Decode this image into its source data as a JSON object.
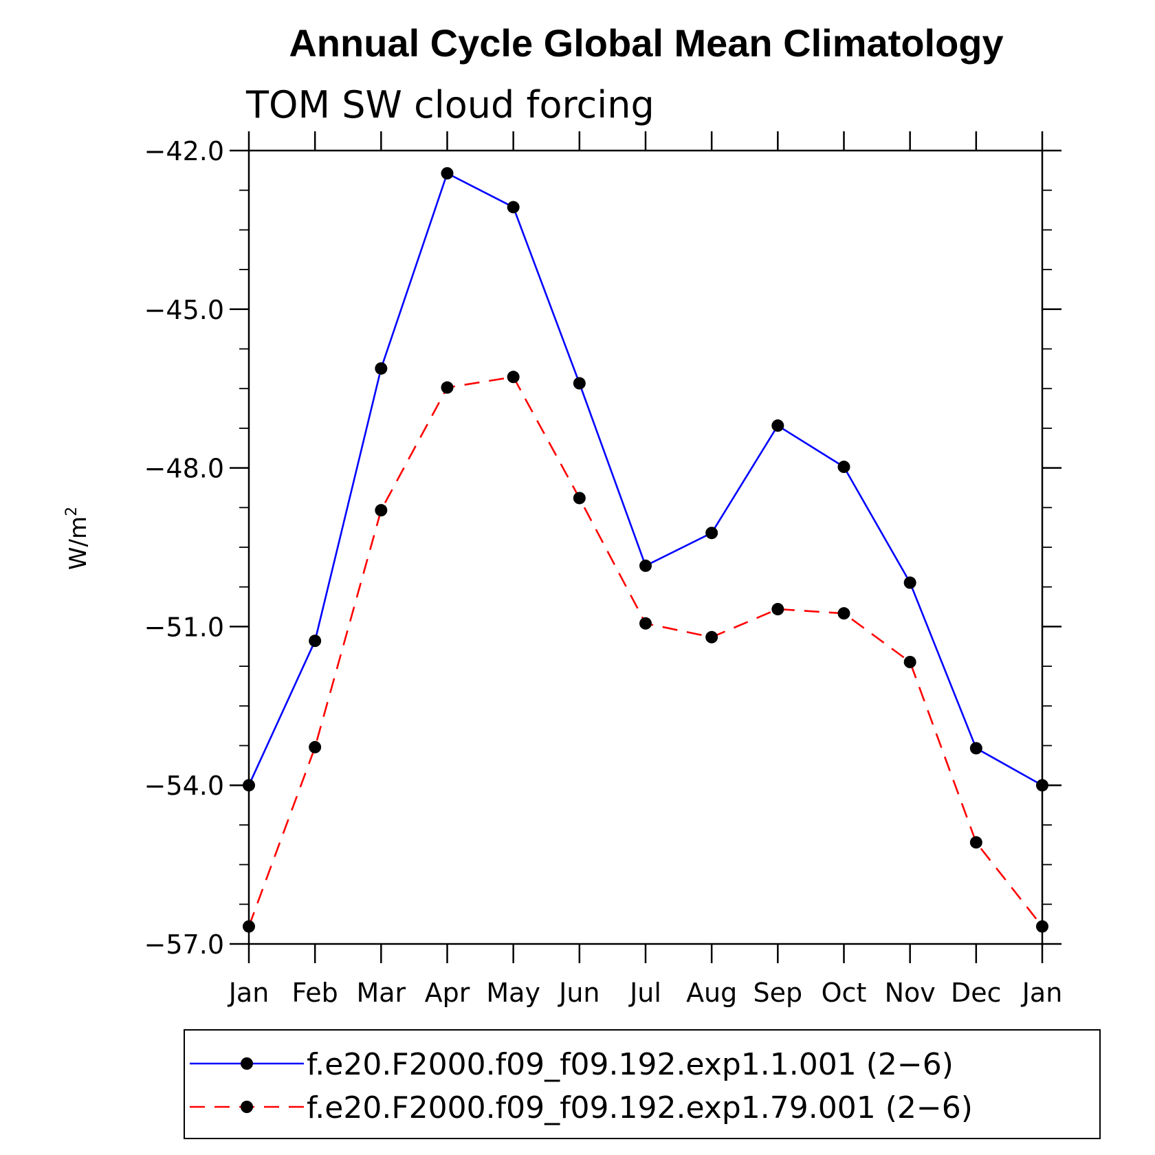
{
  "chart_data": {
    "type": "line",
    "title": "Annual Cycle Global Mean Climatology",
    "subtitle": "TOM SW cloud forcing",
    "ylabel": "W/m",
    "ylabel_superscript": "2",
    "xlabel": "",
    "categories": [
      "Jan",
      "Feb",
      "Mar",
      "Apr",
      "May",
      "Jun",
      "Jul",
      "Aug",
      "Sep",
      "Oct",
      "Nov",
      "Dec",
      "Jan"
    ],
    "ylim": [
      -57.0,
      -42.0
    ],
    "yticks": [
      "-42.0",
      "-45.0",
      "-48.0",
      "-51.0",
      "-54.0",
      "-57.0"
    ],
    "ytick_values": [
      -42,
      -45,
      -48,
      -51,
      -54,
      -57
    ],
    "series": [
      {
        "name": "f.e20.F2000.f09_f09.192.exp1.1.001 (2−6)",
        "color": "#0000ff",
        "style": "solid",
        "values": [
          -54.0,
          -51.27,
          -46.12,
          -42.43,
          -43.07,
          -46.4,
          -49.85,
          -49.23,
          -47.2,
          -47.98,
          -50.17,
          -53.3,
          -54.0
        ]
      },
      {
        "name": "f.e20.F2000.f09_f09.192.exp1.79.001 (2−6)",
        "color": "#ff0000",
        "style": "dashed",
        "values": [
          -56.67,
          -53.28,
          -48.8,
          -46.48,
          -46.28,
          -48.57,
          -50.94,
          -51.2,
          -50.67,
          -50.75,
          -51.67,
          -55.08,
          -56.67
        ]
      }
    ],
    "legend_position": "bottom"
  }
}
